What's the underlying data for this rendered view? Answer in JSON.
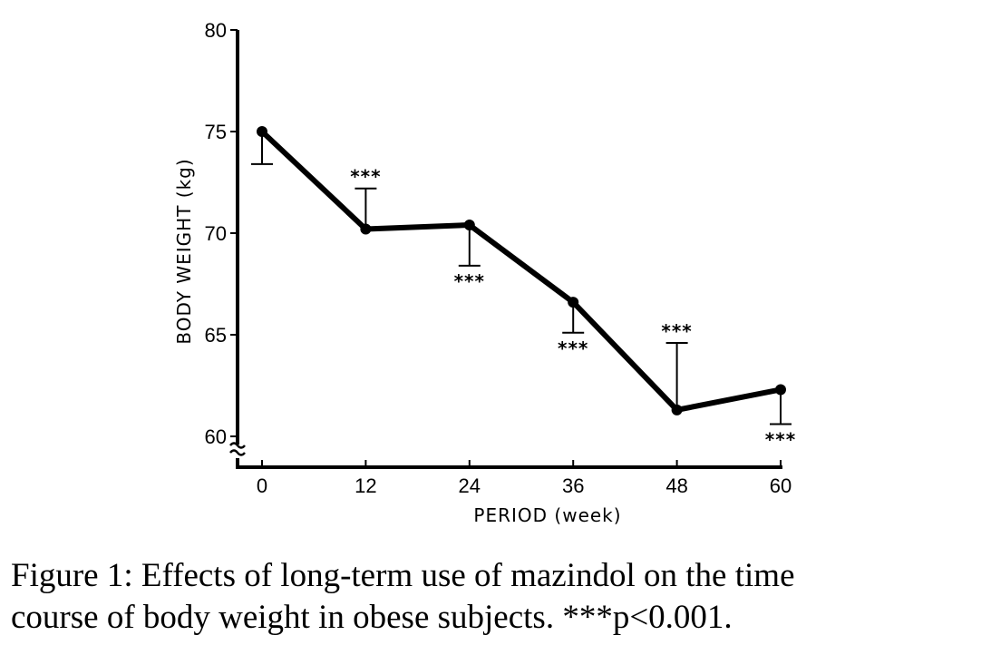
{
  "chart_data": {
    "type": "line",
    "title": "",
    "xlabel": "PERIOD (week)",
    "ylabel": "BODY WEIGHT (kg)",
    "x": [
      0,
      12,
      24,
      36,
      48,
      60
    ],
    "x_ticks": [
      "0",
      "12",
      "24",
      "36",
      "48",
      "60"
    ],
    "y_ticks": [
      "60",
      "65",
      "70",
      "75",
      "80"
    ],
    "ylim": [
      60,
      80
    ],
    "xlim": [
      -3,
      60
    ],
    "grid": false,
    "axis_break": "y-axis at 60",
    "series": [
      {
        "name": "Body weight",
        "values": [
          75.0,
          70.2,
          70.4,
          66.6,
          61.3,
          62.3
        ],
        "error_bar_end": [
          73.4,
          72.2,
          68.4,
          65.1,
          64.6,
          60.6
        ],
        "error_direction": [
          "down",
          "up",
          "down",
          "down",
          "up",
          "down"
        ],
        "significance": [
          "",
          "***",
          "***",
          "***",
          "***",
          "***"
        ]
      }
    ]
  },
  "caption": {
    "line1": "Figure 1: Effects of long-term use of mazindol on the time",
    "line2": "course of body weight in obese subjects. ***p<0.001."
  }
}
